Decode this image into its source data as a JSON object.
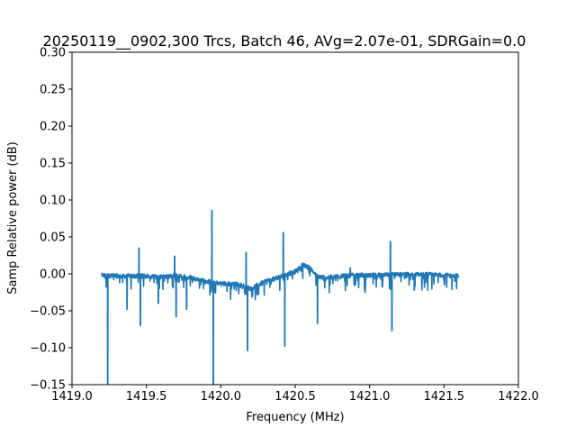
{
  "colors": {
    "series": "#1f77b4",
    "axes": "#000000",
    "background": "#ffffff"
  },
  "chart_data": {
    "type": "line",
    "title": "20250119__0902,300 Trcs, Batch 46, AVg=2.07e-01, SDRGain=0.0",
    "xlabel": "Frequency (MHz)",
    "ylabel": "Samp Relative power (dB)",
    "xlim": [
      1419.0,
      1422.0
    ],
    "ylim": [
      -0.15,
      0.3
    ],
    "xticks": [
      1419.0,
      1419.5,
      1420.0,
      1420.5,
      1421.0,
      1421.5,
      1422.0
    ],
    "xtick_labels": [
      "1419.0",
      "1419.5",
      "1420.0",
      "1420.5",
      "1421.0",
      "1421.5",
      "1422.0"
    ],
    "yticks": [
      -0.15,
      -0.1,
      -0.05,
      0.0,
      0.05,
      0.1,
      0.15,
      0.2,
      0.25,
      0.3
    ],
    "ytick_labels": [
      "−0.15",
      "−0.10",
      "−0.05",
      "0.00",
      "0.05",
      "0.10",
      "0.15",
      "0.20",
      "0.25",
      "0.30"
    ],
    "grid": false,
    "legend": "none",
    "series": [
      {
        "x_range": [
          1419.2,
          1421.6
        ],
        "baseline": [
          [
            1419.2,
            -0.002
          ],
          [
            1419.3,
            -0.003
          ],
          [
            1419.4,
            -0.003
          ],
          [
            1419.5,
            -0.003
          ],
          [
            1419.6,
            -0.004
          ],
          [
            1419.7,
            -0.003
          ],
          [
            1419.8,
            -0.005
          ],
          [
            1419.9,
            -0.01
          ],
          [
            1420.0,
            -0.013
          ],
          [
            1420.1,
            -0.014
          ],
          [
            1420.15,
            -0.016
          ],
          [
            1420.2,
            -0.02
          ],
          [
            1420.3,
            -0.01
          ],
          [
            1420.4,
            -0.004
          ],
          [
            1420.5,
            0.003
          ],
          [
            1420.55,
            0.012
          ],
          [
            1420.6,
            0.008
          ],
          [
            1420.65,
            -0.004
          ],
          [
            1420.7,
            -0.005
          ],
          [
            1420.8,
            -0.003
          ],
          [
            1420.9,
            -0.002
          ],
          [
            1421.0,
            -0.002
          ],
          [
            1421.1,
            -0.002
          ],
          [
            1421.2,
            -0.001
          ],
          [
            1421.3,
            -0.001
          ],
          [
            1421.4,
            -0.001
          ],
          [
            1421.5,
            -0.002
          ],
          [
            1421.6,
            -0.003
          ]
        ],
        "spikes": [
          [
            1419.24,
            -0.15
          ],
          [
            1419.26,
            -0.005
          ],
          [
            1419.37,
            -0.048
          ],
          [
            1419.45,
            0.035
          ],
          [
            1419.46,
            -0.07
          ],
          [
            1419.58,
            -0.04
          ],
          [
            1419.69,
            0.024
          ],
          [
            1419.7,
            -0.058
          ],
          [
            1419.77,
            -0.048
          ],
          [
            1419.94,
            0.086
          ],
          [
            1419.95,
            -0.15
          ],
          [
            1420.17,
            0.029
          ],
          [
            1420.18,
            -0.104
          ],
          [
            1420.42,
            0.056
          ],
          [
            1420.43,
            -0.098
          ],
          [
            1420.65,
            -0.067
          ],
          [
            1420.87,
            0.008
          ],
          [
            1420.97,
            -0.025
          ],
          [
            1421.14,
            0.044
          ],
          [
            1421.15,
            -0.077
          ],
          [
            1421.3,
            -0.022
          ]
        ]
      }
    ]
  }
}
